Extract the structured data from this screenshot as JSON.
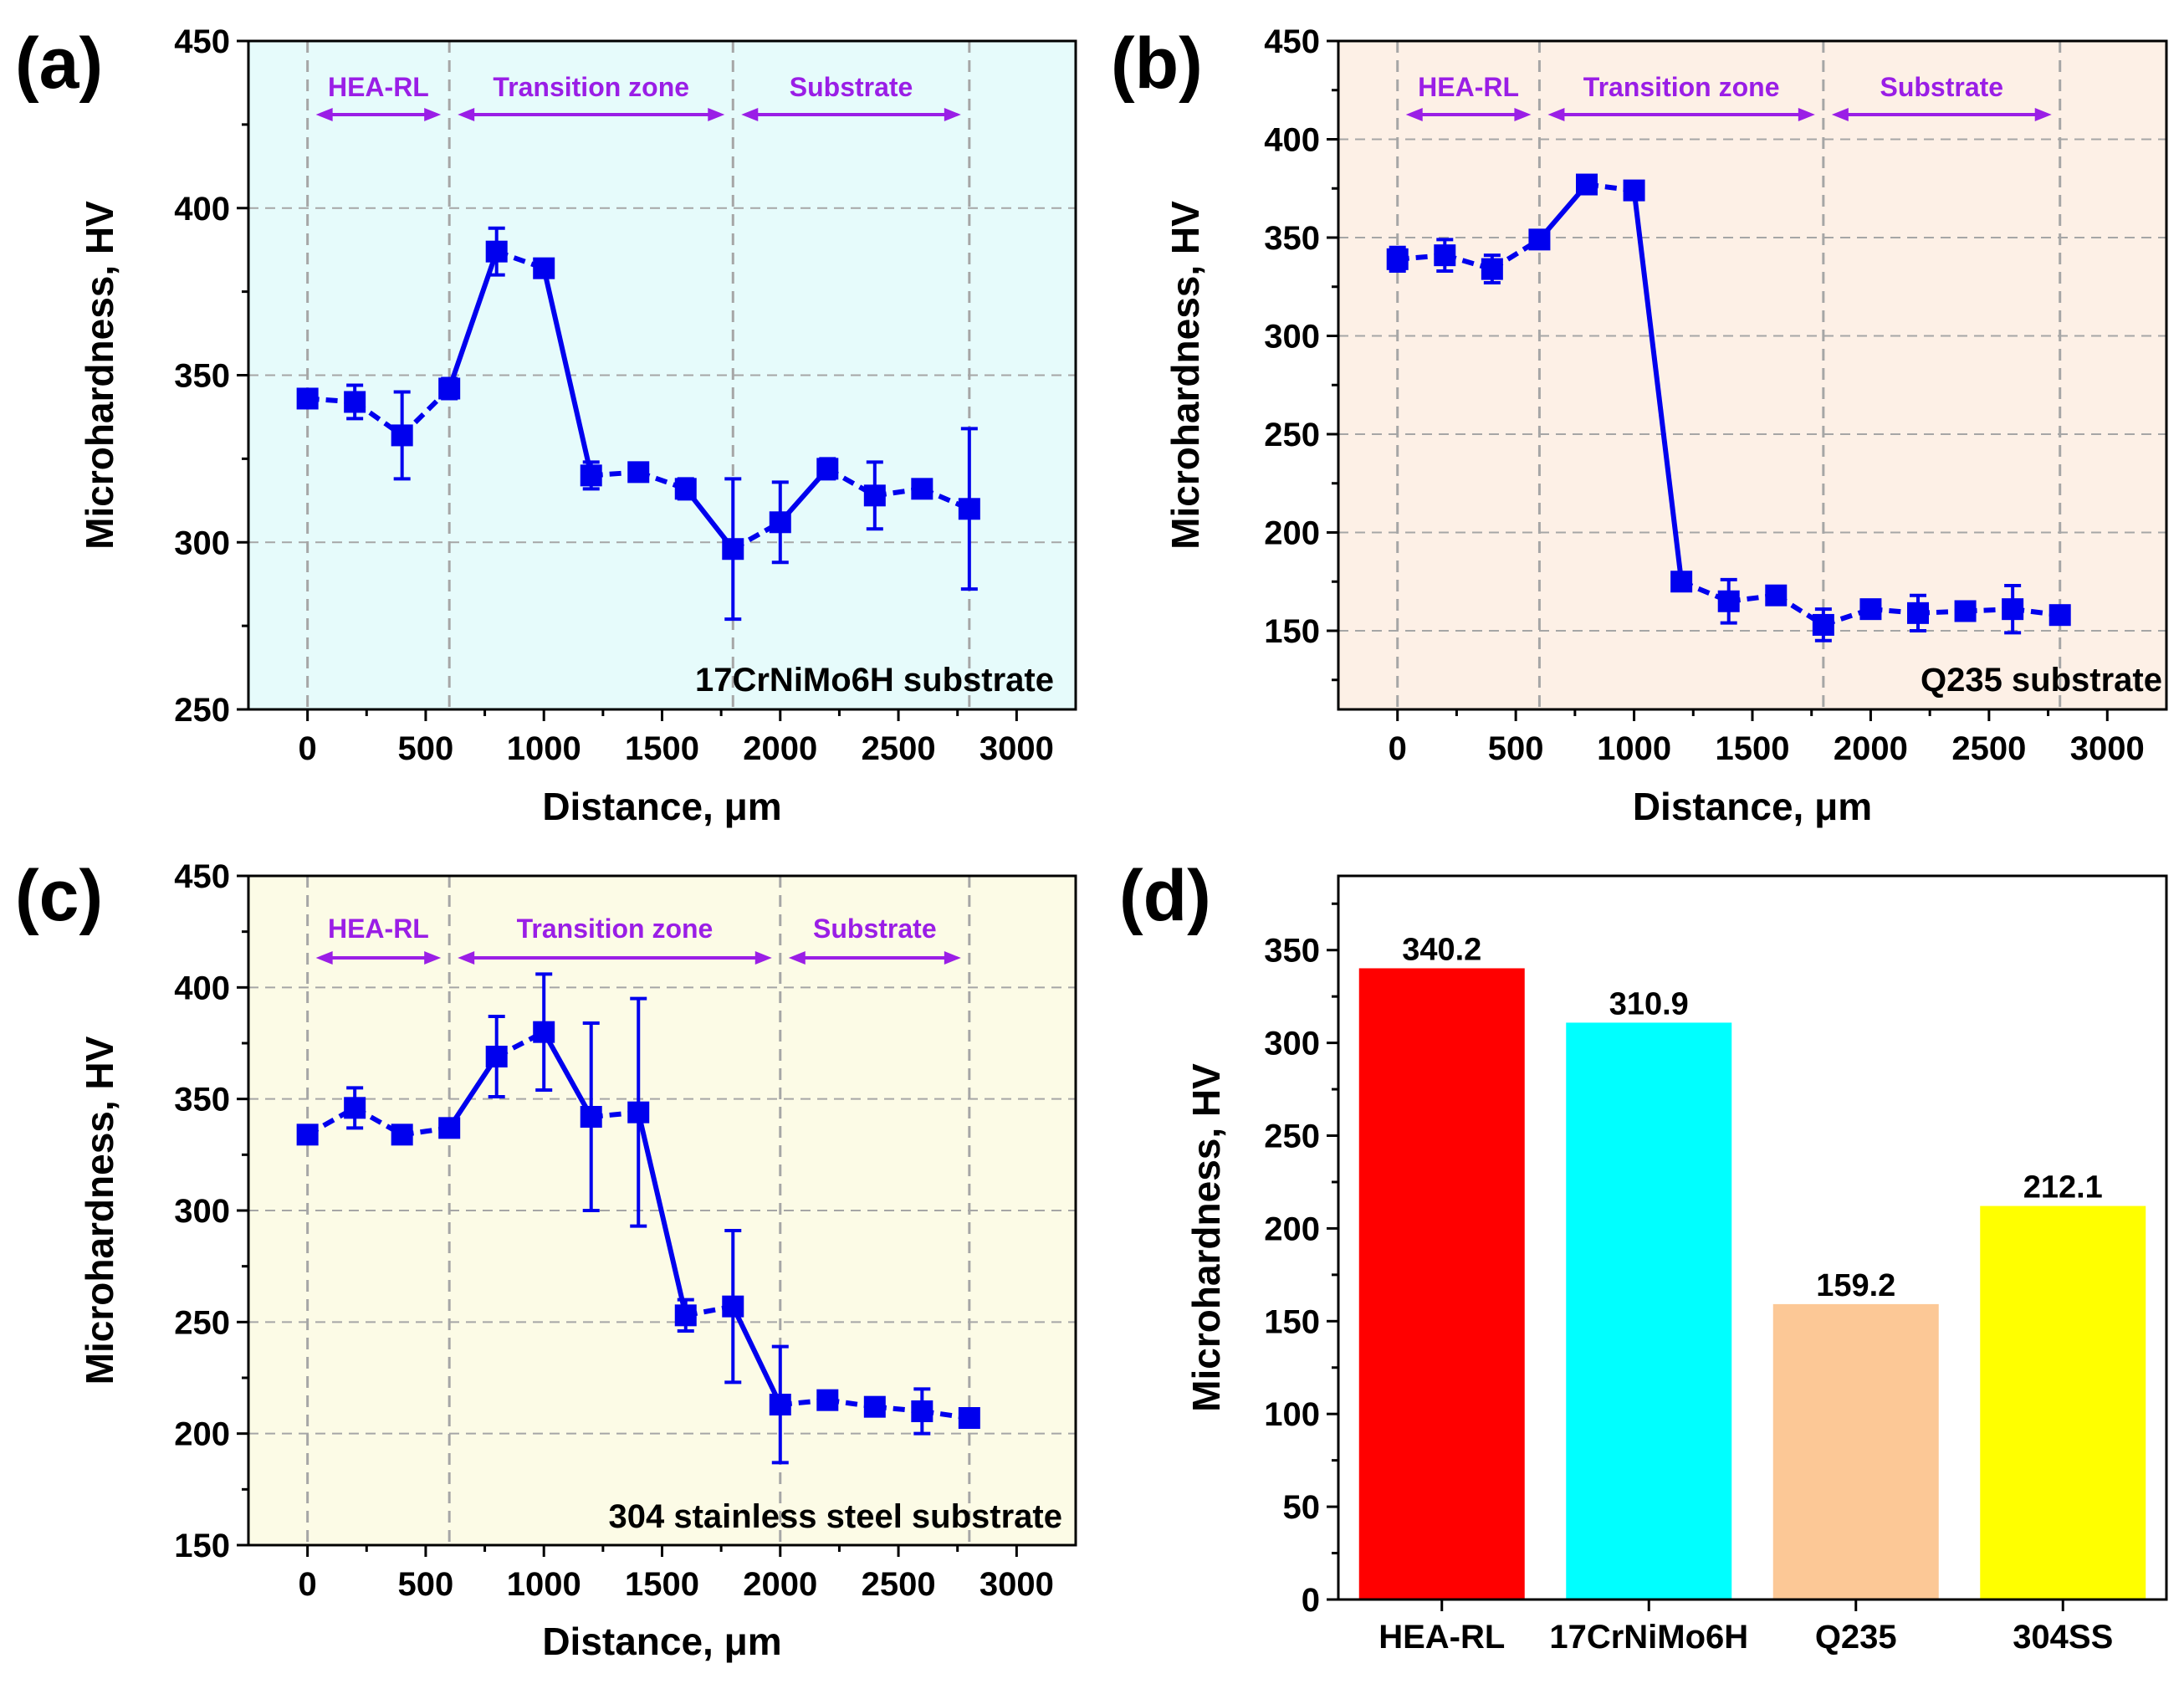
{
  "chart_data": [
    {
      "panel": "(a)",
      "type": "line",
      "title": "",
      "xlabel": "Distance, μm",
      "ylabel": "Microhardness, HV",
      "xlim": [
        -250,
        3250
      ],
      "ylim": [
        250,
        450
      ],
      "xticks": [
        "0",
        "500",
        "1000",
        "1500",
        "2000",
        "2500",
        "3000"
      ],
      "yticks": [
        "250",
        "300",
        "350",
        "400",
        "450"
      ],
      "grid": true,
      "background": "#e6fbfb",
      "annotation": "17CrNiMo6H substrate",
      "zone_boundaries": [
        600,
        1800
      ],
      "zones": [
        {
          "label": "HEA-RL",
          "start": 0,
          "end": 600
        },
        {
          "label": "Transition zone",
          "start": 600,
          "end": 1800
        },
        {
          "label": "Substrate",
          "start": 1800,
          "end": 2800
        }
      ],
      "series": [
        {
          "name": "Microhardness",
          "color": "#0000ee",
          "x": [
            0,
            200,
            400,
            600,
            800,
            1000,
            1200,
            1400,
            1600,
            1800,
            2000,
            2200,
            2400,
            2600,
            2800
          ],
          "values": [
            343,
            342,
            332,
            346,
            387,
            382,
            320,
            321,
            316,
            298,
            306,
            322,
            314,
            316,
            310
          ],
          "errors": [
            2,
            5,
            13,
            3,
            7,
            2,
            4,
            1,
            3,
            21,
            12,
            3,
            10,
            1,
            24
          ]
        }
      ]
    },
    {
      "panel": "(b)",
      "type": "line",
      "title": "",
      "xlabel": "Distance, μm",
      "ylabel": "Microhardness, HV",
      "xlim": [
        -250,
        3250
      ],
      "ylim": [
        110,
        450
      ],
      "xticks": [
        "0",
        "500",
        "1000",
        "1500",
        "2000",
        "2500",
        "3000"
      ],
      "yticks": [
        "150",
        "200",
        "250",
        "300",
        "350",
        "400",
        "450"
      ],
      "grid": true,
      "background": "#fdf0e6",
      "annotation": "Q235 substrate",
      "zone_boundaries": [
        600,
        1800
      ],
      "zones": [
        {
          "label": "HEA-RL",
          "start": 0,
          "end": 600
        },
        {
          "label": "Transition zone",
          "start": 600,
          "end": 1800
        },
        {
          "label": "Substrate",
          "start": 1800,
          "end": 2800
        }
      ],
      "series": [
        {
          "name": "Microhardness",
          "color": "#0000ee",
          "x": [
            0,
            200,
            400,
            600,
            800,
            1000,
            1200,
            1400,
            1600,
            1800,
            2000,
            2200,
            2400,
            2600,
            2800
          ],
          "values": [
            339,
            341,
            334,
            349,
            377,
            374,
            175,
            165,
            168,
            153,
            161,
            159,
            160,
            161,
            158
          ],
          "errors": [
            6,
            8,
            7,
            3,
            3,
            2,
            4,
            11,
            3,
            8,
            3,
            9,
            3,
            12,
            3
          ]
        }
      ]
    },
    {
      "panel": "(c)",
      "type": "line",
      "title": "",
      "xlabel": "Distance, μm",
      "ylabel": "Microhardness, HV",
      "xlim": [
        -250,
        3250
      ],
      "ylim": [
        150,
        450
      ],
      "xticks": [
        "0",
        "500",
        "1000",
        "1500",
        "2000",
        "2500",
        "3000"
      ],
      "yticks": [
        "150",
        "200",
        "250",
        "300",
        "350",
        "400",
        "450"
      ],
      "grid": true,
      "background": "#fcfbe6",
      "annotation": "304 stainless steel substrate",
      "zone_boundaries": [
        600,
        2000
      ],
      "zones": [
        {
          "label": "HEA-RL",
          "start": 0,
          "end": 600
        },
        {
          "label": "Transition zone",
          "start": 600,
          "end": 2000
        },
        {
          "label": "Substrate",
          "start": 2000,
          "end": 2800
        }
      ],
      "series": [
        {
          "name": "Microhardness",
          "color": "#0000ee",
          "x": [
            0,
            200,
            400,
            600,
            800,
            1000,
            1200,
            1400,
            1600,
            1800,
            2000,
            2200,
            2400,
            2600,
            2800
          ],
          "values": [
            334,
            346,
            334,
            337,
            369,
            380,
            342,
            344,
            253,
            257,
            213,
            215,
            212,
            210,
            207
          ],
          "errors": [
            2,
            9,
            4,
            2,
            18,
            26,
            42,
            51,
            7,
            34,
            26,
            2,
            3,
            10,
            2
          ]
        }
      ]
    },
    {
      "panel": "(d)",
      "type": "bar",
      "title": "",
      "xlabel": "",
      "ylabel": "Microhardness, HV",
      "ylim": [
        0,
        390
      ],
      "yticks": [
        "0",
        "50",
        "100",
        "150",
        "200",
        "250",
        "300",
        "350"
      ],
      "grid": false,
      "categories": [
        "HEA-RL",
        "17CrNiMo6H",
        "Q235",
        "304SS"
      ],
      "values": [
        340.2,
        310.9,
        159.2,
        212.1
      ],
      "value_labels": [
        "340.2",
        "310.9",
        "159.2",
        "212.1"
      ],
      "colors": [
        "#ff0000",
        "#00ffff",
        "#fcc896",
        "#ffff00"
      ]
    }
  ],
  "colors": {
    "series": "#0000ee",
    "zone": "#9a1ee6",
    "grid": "#a6a6a6"
  }
}
